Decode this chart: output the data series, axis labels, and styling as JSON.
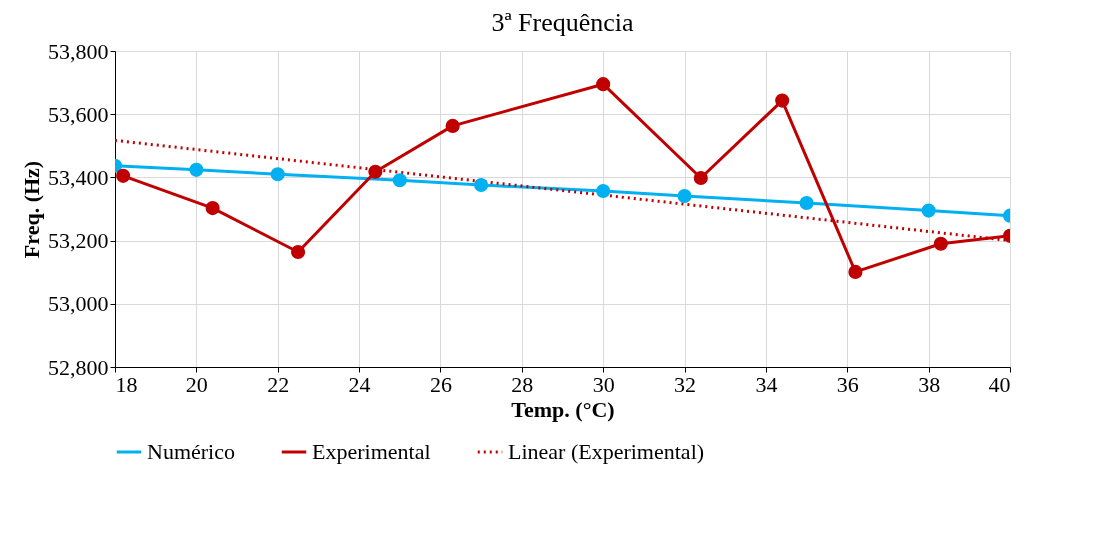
{
  "chart_data": {
    "type": "line",
    "title": "3ª Frequência",
    "xlabel": "Temp. (°C)",
    "ylabel": "Freq. (Hz)",
    "xlim": [
      18,
      40
    ],
    "xticks": [
      18,
      20,
      22,
      24,
      26,
      28,
      30,
      32,
      34,
      36,
      38,
      40
    ],
    "ylim": [
      52800,
      53800
    ],
    "yticks": [
      {
        "value": 52800,
        "label": "52,800"
      },
      {
        "value": 53000,
        "label": "53,000"
      },
      {
        "value": 53200,
        "label": "53,200"
      },
      {
        "value": 53400,
        "label": "53,400"
      },
      {
        "value": 53600,
        "label": "53,600"
      },
      {
        "value": 53800,
        "label": "53,800"
      }
    ],
    "grid": true,
    "legend": "bottom",
    "series": [
      {
        "name": "Numérico",
        "color": "#00b0f0",
        "marker": "circle",
        "line_style": "solid",
        "x": [
          18,
          20,
          22,
          25,
          27,
          30,
          32,
          35,
          38,
          40
        ],
        "values": [
          53437,
          53424,
          53410,
          53391,
          53376,
          53357,
          53341,
          53319,
          53295,
          53279
        ]
      },
      {
        "name": "Experimental",
        "color": "#c00000",
        "marker": "circle",
        "line_style": "solid",
        "x": [
          18.2,
          20.4,
          22.5,
          24.4,
          26.3,
          30,
          32.4,
          34.4,
          36.2,
          38.3,
          40
        ],
        "values": [
          53405,
          53303,
          53164,
          53418,
          53563,
          53695,
          53398,
          53643,
          53101,
          53190,
          53215
        ]
      },
      {
        "name": "Linear (Experimental)",
        "color": "#c00000",
        "marker": "none",
        "line_style": "dotted",
        "x": [
          18,
          40
        ],
        "values": [
          53517,
          53200
        ]
      }
    ]
  }
}
